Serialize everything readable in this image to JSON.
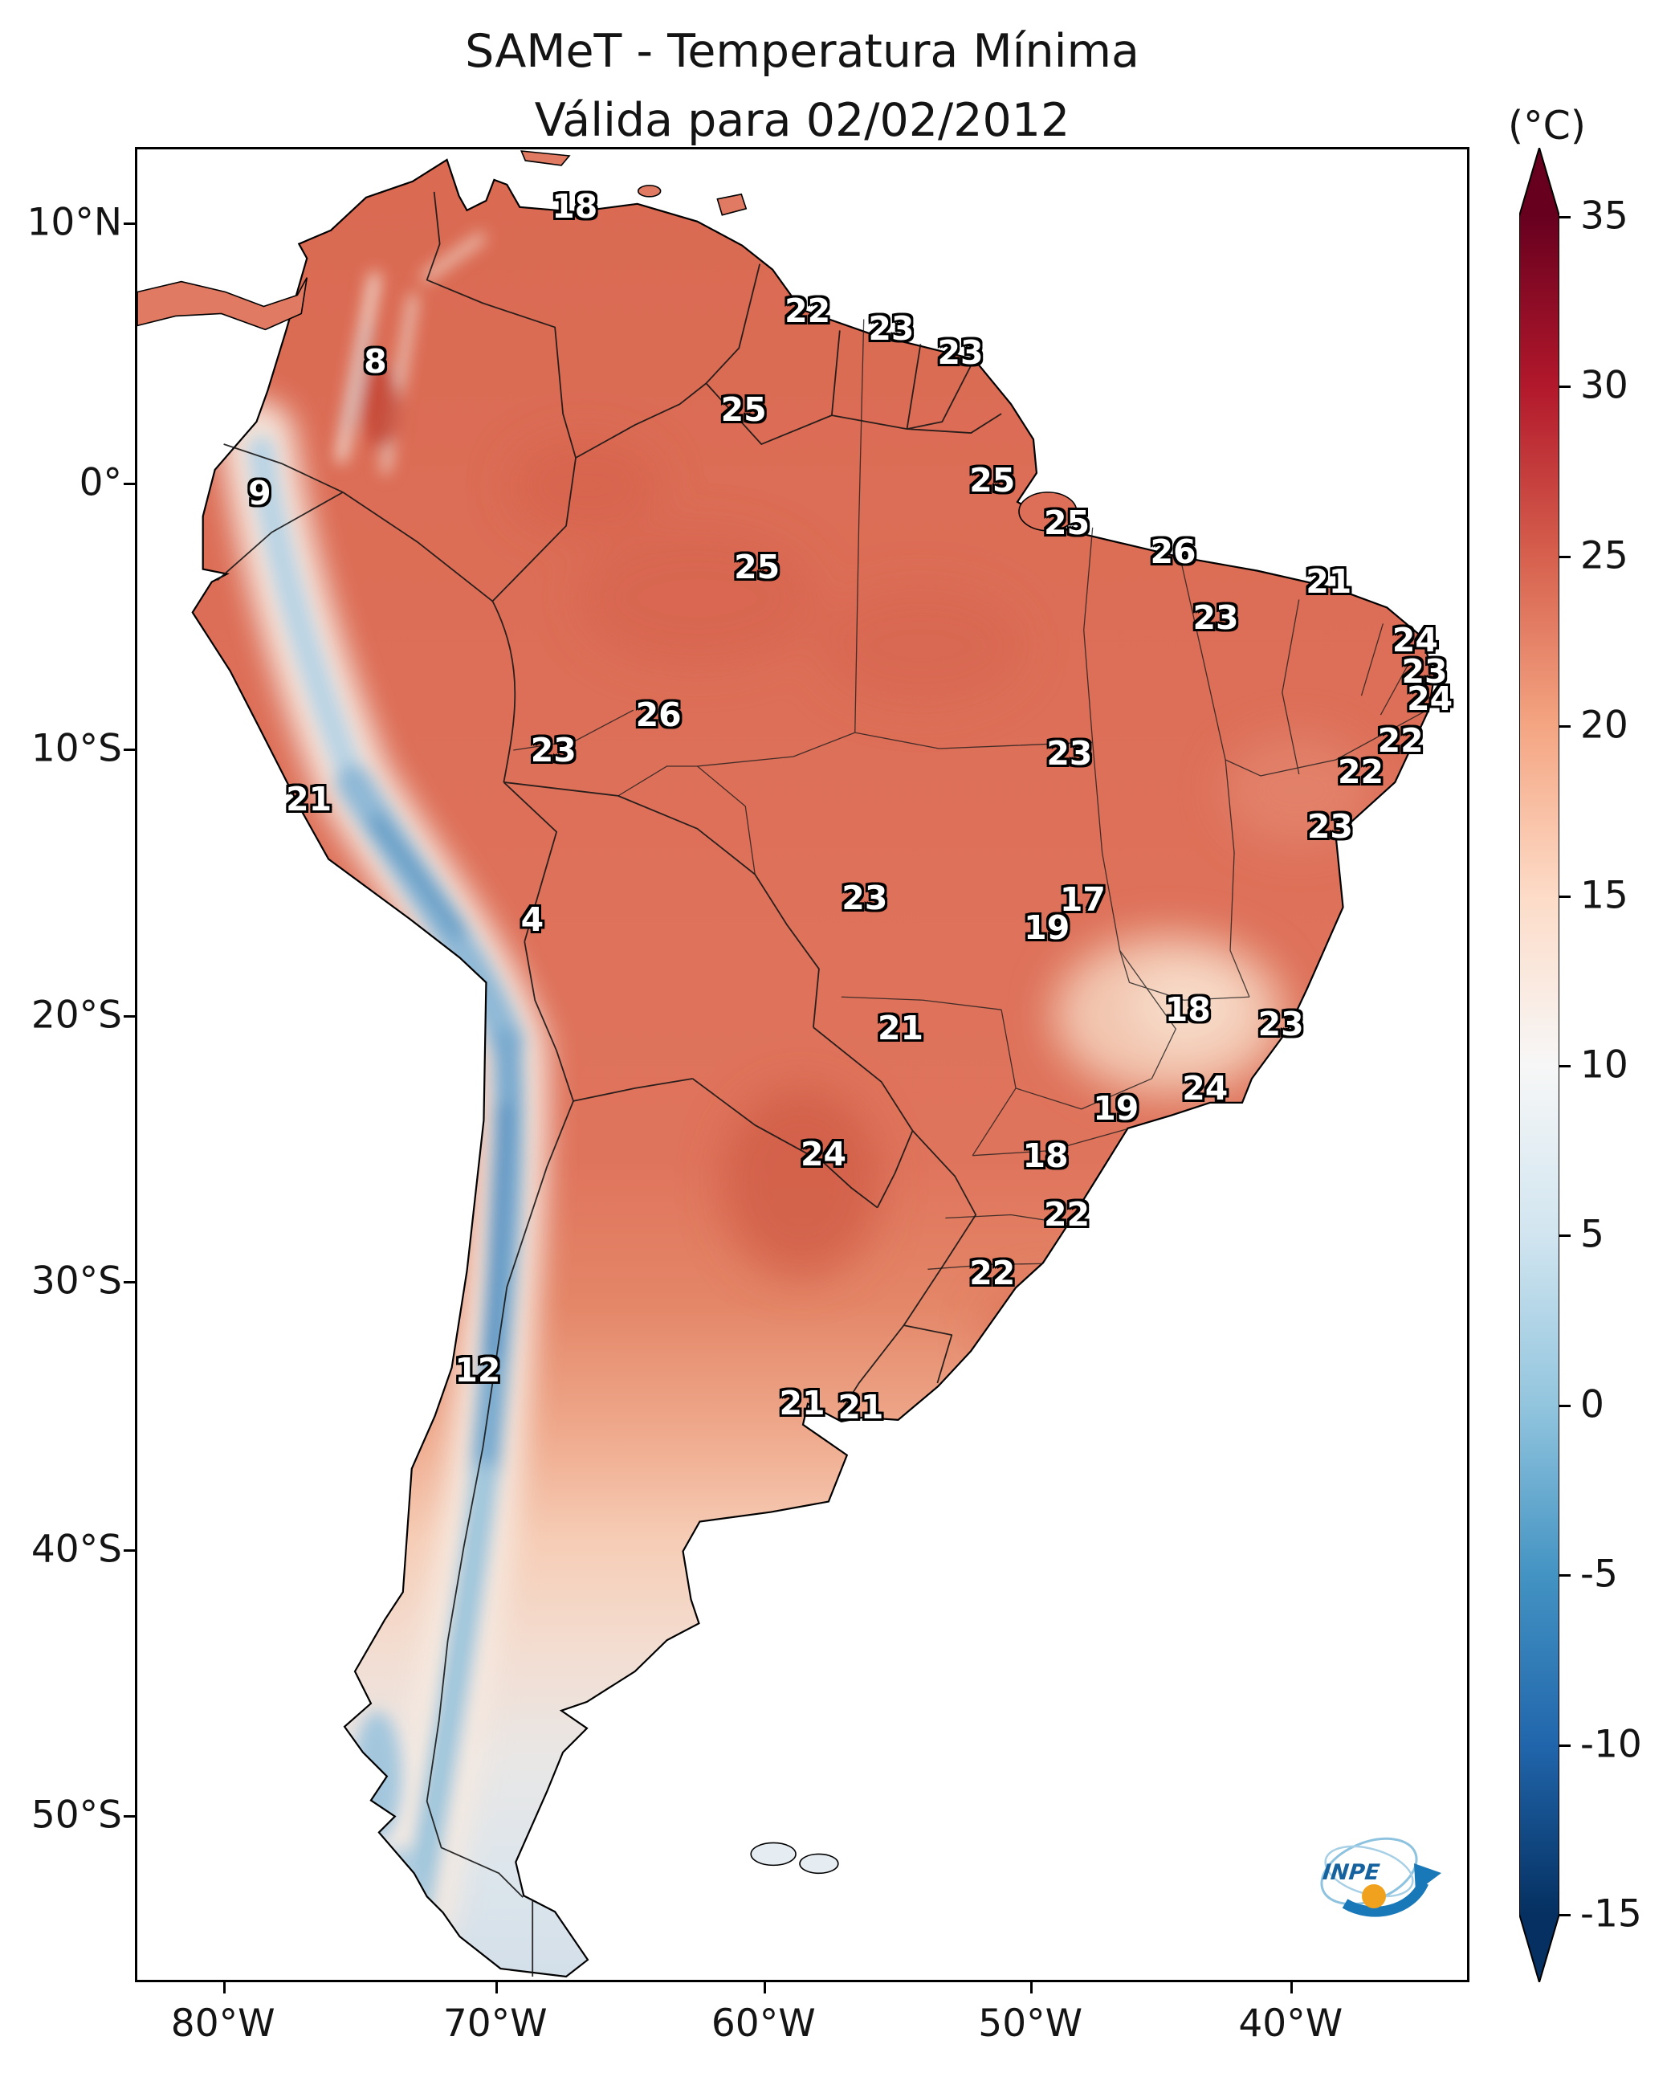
{
  "figure": {
    "title_line1": "SAMeT - Temperatura Mínima",
    "title_line2": "Válida para 02/02/2012"
  },
  "colorbar": {
    "unit_label": "(°C)"
  },
  "logo": {
    "text": "INPE"
  },
  "chart_data": {
    "type": "heatmap",
    "title": "SAMeT - Temperatura Mínima",
    "subtitle": "Válida para 02/02/2012",
    "region": "South America",
    "unit": "°C",
    "colormap": {
      "name": "RdBu_r",
      "extend": "both",
      "value_range": [
        -15,
        35
      ],
      "colors": [
        "#67001f",
        "#b2182b",
        "#d6604d",
        "#f4a582",
        "#fddbc7",
        "#f7f7f7",
        "#d1e5f0",
        "#92c5de",
        "#4393c3",
        "#2166ac",
        "#053061"
      ]
    },
    "colorbar_ticks": [
      35,
      30,
      25,
      20,
      15,
      10,
      5,
      0,
      -5,
      -10,
      -15
    ],
    "lat_ticks": [
      {
        "label": "10°N",
        "y_pct": 4.1
      },
      {
        "label": "0°",
        "y_pct": 18.3
      },
      {
        "label": "10°S",
        "y_pct": 32.8
      },
      {
        "label": "20°S",
        "y_pct": 47.3
      },
      {
        "label": "30°S",
        "y_pct": 61.8
      },
      {
        "label": "40°S",
        "y_pct": 76.4
      },
      {
        "label": "50°S",
        "y_pct": 90.9
      }
    ],
    "lon_ticks": [
      {
        "label": "80°W",
        "x_pct": 6.6
      },
      {
        "label": "70°W",
        "x_pct": 27.0
      },
      {
        "label": "60°W",
        "x_pct": 47.1
      },
      {
        "label": "50°W",
        "x_pct": 67.1
      },
      {
        "label": "40°W",
        "x_pct": 86.6
      }
    ],
    "station_labels": [
      {
        "value": 18,
        "x_pct": 32.9,
        "y_pct": 3.1
      },
      {
        "value": 22,
        "x_pct": 50.4,
        "y_pct": 8.8
      },
      {
        "value": 23,
        "x_pct": 56.7,
        "y_pct": 9.8
      },
      {
        "value": 23,
        "x_pct": 61.9,
        "y_pct": 11.1
      },
      {
        "value": 8,
        "x_pct": 17.9,
        "y_pct": 11.6
      },
      {
        "value": 25,
        "x_pct": 45.6,
        "y_pct": 14.2
      },
      {
        "value": 25,
        "x_pct": 64.3,
        "y_pct": 18.1
      },
      {
        "value": 9,
        "x_pct": 9.2,
        "y_pct": 18.8
      },
      {
        "value": 25,
        "x_pct": 69.9,
        "y_pct": 20.4
      },
      {
        "value": 26,
        "x_pct": 77.9,
        "y_pct": 22.0
      },
      {
        "value": 25,
        "x_pct": 46.6,
        "y_pct": 22.8
      },
      {
        "value": 21,
        "x_pct": 89.6,
        "y_pct": 23.6
      },
      {
        "value": 23,
        "x_pct": 81.1,
        "y_pct": 25.6
      },
      {
        "value": 24,
        "x_pct": 96.1,
        "y_pct": 26.8
      },
      {
        "value": 23,
        "x_pct": 96.8,
        "y_pct": 28.5
      },
      {
        "value": 24,
        "x_pct": 97.2,
        "y_pct": 30.0
      },
      {
        "value": 26,
        "x_pct": 39.2,
        "y_pct": 30.9
      },
      {
        "value": 22,
        "x_pct": 95.0,
        "y_pct": 32.3
      },
      {
        "value": 23,
        "x_pct": 31.3,
        "y_pct": 32.8
      },
      {
        "value": 23,
        "x_pct": 70.1,
        "y_pct": 33.0
      },
      {
        "value": 22,
        "x_pct": 92.0,
        "y_pct": 34.0
      },
      {
        "value": 21,
        "x_pct": 12.9,
        "y_pct": 35.5
      },
      {
        "value": 23,
        "x_pct": 89.7,
        "y_pct": 37.0
      },
      {
        "value": 23,
        "x_pct": 54.7,
        "y_pct": 40.9
      },
      {
        "value": 17,
        "x_pct": 71.1,
        "y_pct": 41.0
      },
      {
        "value": 4,
        "x_pct": 29.7,
        "y_pct": 42.1
      },
      {
        "value": 19,
        "x_pct": 68.4,
        "y_pct": 42.5
      },
      {
        "value": 18,
        "x_pct": 79.0,
        "y_pct": 47.0
      },
      {
        "value": 23,
        "x_pct": 86.0,
        "y_pct": 47.8
      },
      {
        "value": 21,
        "x_pct": 57.4,
        "y_pct": 48.0
      },
      {
        "value": 24,
        "x_pct": 80.3,
        "y_pct": 51.3
      },
      {
        "value": 19,
        "x_pct": 73.6,
        "y_pct": 52.4
      },
      {
        "value": 24,
        "x_pct": 51.6,
        "y_pct": 54.9
      },
      {
        "value": 18,
        "x_pct": 68.3,
        "y_pct": 55.0
      },
      {
        "value": 22,
        "x_pct": 69.9,
        "y_pct": 58.2
      },
      {
        "value": 22,
        "x_pct": 64.3,
        "y_pct": 61.4
      },
      {
        "value": 12,
        "x_pct": 25.6,
        "y_pct": 66.7
      },
      {
        "value": 21,
        "x_pct": 50.0,
        "y_pct": 68.5
      },
      {
        "value": 21,
        "x_pct": 54.4,
        "y_pct": 68.7
      }
    ]
  }
}
